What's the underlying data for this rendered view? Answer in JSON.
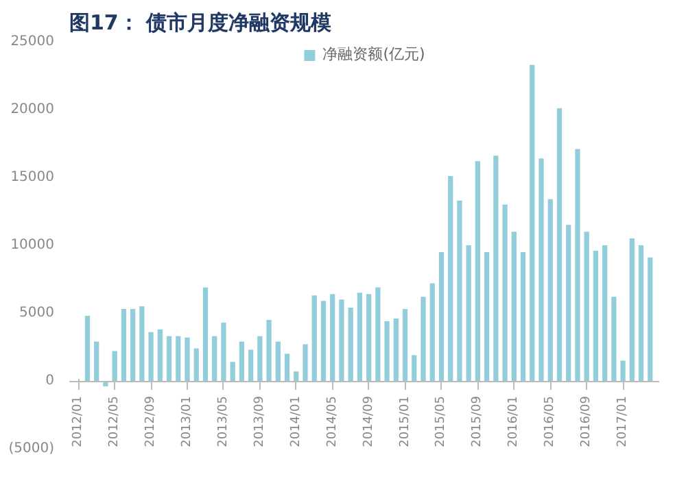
{
  "chart_data": {
    "type": "bar",
    "title": "图17：  债市月度净融资规模",
    "categories": [
      "2012/01",
      null,
      null,
      null,
      "2012/05",
      null,
      null,
      null,
      "2012/09",
      null,
      null,
      null,
      "2013/01",
      null,
      null,
      null,
      "2013/05",
      null,
      null,
      null,
      "2013/09",
      null,
      null,
      null,
      "2014/01",
      null,
      null,
      null,
      "2014/05",
      null,
      null,
      null,
      "2014/09",
      null,
      null,
      null,
      "2015/01",
      null,
      null,
      null,
      "2015/05",
      null,
      null,
      null,
      "2015/09",
      null,
      null,
      null,
      "2016/01",
      null,
      null,
      null,
      "2016/05",
      null,
      null,
      null,
      "2016/09",
      null,
      null,
      null,
      "2017/01",
      null,
      null,
      null
    ],
    "series": [
      {
        "name": "净融资额(亿元)",
        "color": "#92cddc",
        "values": [
          null,
          4800,
          2900,
          -400,
          2200,
          5300,
          5300,
          5500,
          3600,
          3800,
          3300,
          3300,
          3200,
          2400,
          6900,
          3300,
          4300,
          1400,
          2900,
          2300,
          3300,
          4500,
          2900,
          2000,
          700,
          2700,
          6300,
          5900,
          6400,
          6000,
          5400,
          6500,
          6400,
          6900,
          4400,
          4600,
          5300,
          1900,
          6200,
          7200,
          9500,
          15100,
          13300,
          10000,
          16200,
          9500,
          16600,
          13000,
          11000,
          9500,
          23300,
          16400,
          13400,
          20100,
          11500,
          17100,
          11000,
          9600,
          10000,
          6200,
          1500,
          10500,
          10000,
          9100
        ]
      }
    ],
    "ylim": [
      -5000,
      25000
    ],
    "yticks": [
      {
        "value": -5000,
        "label": "(5000)"
      },
      0,
      5000,
      10000,
      15000,
      20000,
      25000
    ],
    "legend": "top",
    "grid": false
  }
}
